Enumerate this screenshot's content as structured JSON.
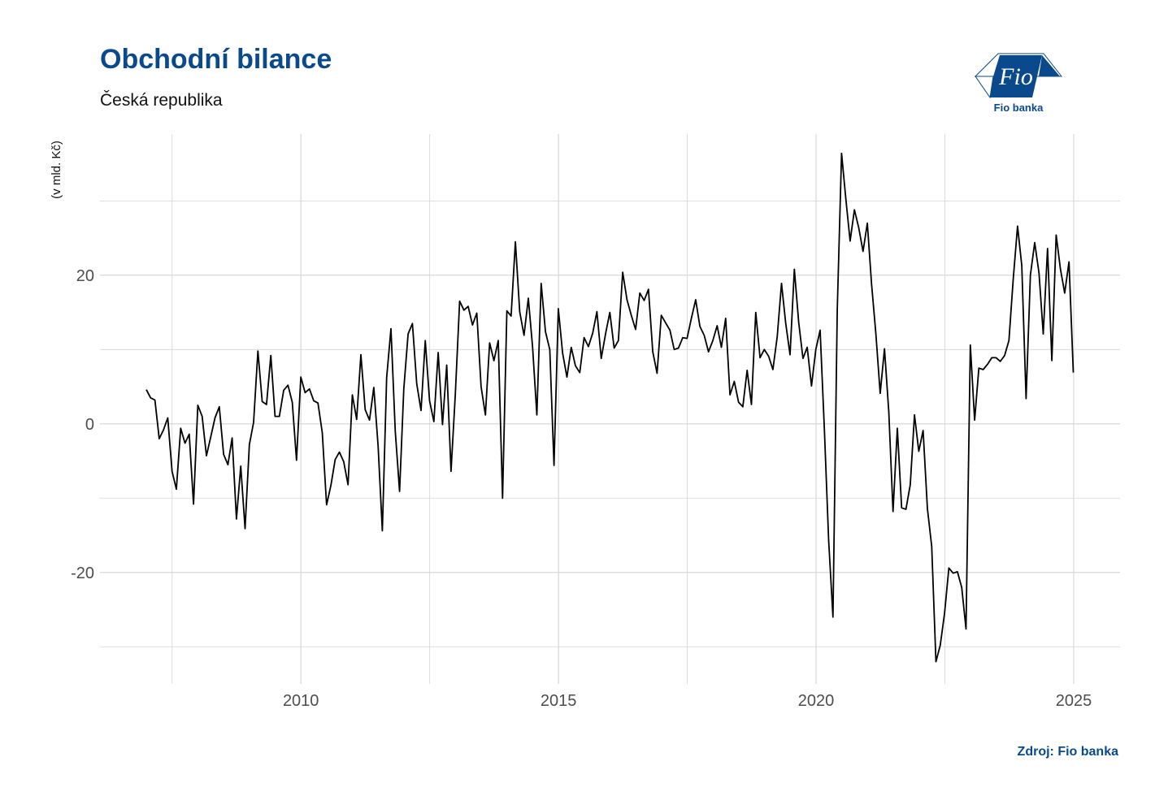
{
  "header": {
    "title": "Obchodní bilance",
    "subtitle": "Česká republika"
  },
  "logo": {
    "text": "Fio",
    "caption": "Fio banka",
    "color": "#0a4a8c"
  },
  "footer": {
    "source": "Zdroj: Fio banka"
  },
  "colors": {
    "title": "#0a4a8c",
    "line": "#000000",
    "grid": "#d4d4d4"
  },
  "chart_data": {
    "type": "line",
    "title": "Obchodní bilance",
    "subtitle": "Česká republika",
    "xlabel": "",
    "ylabel": "(v mld. Kč)",
    "xlim": [
      2006.1,
      2025.9
    ],
    "ylim": [
      -35,
      39
    ],
    "xticks": [
      2010,
      2015,
      2020,
      2025
    ],
    "xtick_labels": [
      "2010",
      "2015",
      "2020",
      "2025"
    ],
    "yticks": [
      -20,
      0,
      20
    ],
    "ytick_labels": [
      "-20",
      "0",
      "20"
    ],
    "grid": true,
    "legend": "none",
    "series": [
      {
        "x_start": 2007.0,
        "step": 0.0833,
        "values": [
          4.6,
          3.5,
          3.2,
          -2.0,
          -0.8,
          0.8,
          -6.4,
          -8.8,
          -0.6,
          -2.6,
          -1.4,
          -10.8,
          2.5,
          1.0,
          -4.3,
          -1.8,
          0.8,
          2.3,
          -4.1,
          -5.5,
          -1.9,
          -12.8,
          -5.7,
          -14.1,
          -2.8,
          0.2,
          9.8,
          3.0,
          2.6,
          9.2,
          1.0,
          1.0,
          4.5,
          5.2,
          2.9,
          -4.9,
          6.3,
          4.2,
          4.7,
          3.1,
          2.8,
          -1.2,
          -10.9,
          -8.3,
          -4.8,
          -3.8,
          -5.1,
          -8.2,
          3.9,
          0.6,
          9.3,
          1.9,
          0.5,
          4.9,
          -3.0,
          -14.4,
          6.2,
          12.8,
          -1.0,
          -9.1,
          4.7,
          12.1,
          13.5,
          5.4,
          1.8,
          11.2,
          3.1,
          0.3,
          9.6,
          -0.1,
          7.9,
          -6.4,
          4.0,
          16.5,
          15.3,
          15.8,
          13.3,
          14.9,
          5.0,
          1.2,
          10.9,
          8.5,
          11.2,
          -10.0,
          15.2,
          14.5,
          24.5,
          15.1,
          11.9,
          16.9,
          10.4,
          1.2,
          18.9,
          12.4,
          10.0,
          -5.6,
          15.5,
          9.5,
          6.3,
          10.3,
          7.8,
          6.9,
          11.6,
          10.4,
          12.2,
          15.1,
          8.8,
          12.1,
          15.0,
          10.2,
          11.2,
          20.4,
          16.7,
          14.6,
          12.7,
          17.6,
          16.6,
          18.1,
          9.7,
          6.8,
          14.6,
          13.6,
          12.6,
          10.0,
          10.2,
          11.6,
          11.5,
          14.2,
          16.7,
          13.1,
          11.9,
          9.7,
          11.2,
          13.2,
          10.3,
          14.2,
          3.9,
          5.7,
          2.9,
          2.3,
          7.2,
          2.6,
          15.0,
          8.9,
          10.0,
          9.1,
          7.3,
          11.7,
          18.9,
          13.5,
          9.3,
          20.8,
          13.7,
          8.8,
          10.3,
          5.1,
          10.0,
          12.6,
          -0.9,
          -15.7,
          -26.0,
          15.4,
          36.4,
          30.2,
          24.6,
          28.8,
          26.4,
          23.2,
          27.0,
          18.8,
          12.1,
          4.1,
          10.1,
          1.6,
          -11.8,
          -0.6,
          -11.3,
          -11.5,
          -8.2,
          1.2,
          -3.7,
          -0.9,
          -11.4,
          -16.5,
          -32.0,
          -29.8,
          -25.5,
          -19.4,
          -20.1,
          -19.9,
          -22.0,
          -27.6,
          10.6,
          0.5,
          7.5,
          7.3,
          8.0,
          8.9,
          8.9,
          8.4,
          9.2,
          11.2,
          19.5,
          26.6,
          21.3,
          3.4,
          20.0,
          24.4,
          20.3,
          12.1,
          23.6,
          8.5,
          25.4,
          20.8,
          17.6,
          21.8,
          6.9
        ]
      }
    ]
  }
}
